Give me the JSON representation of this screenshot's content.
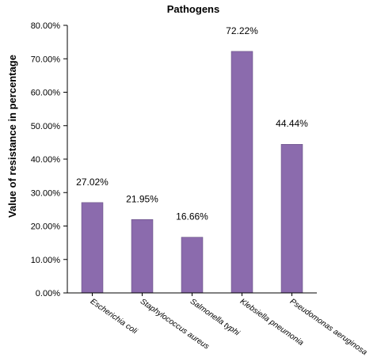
{
  "chart_data": {
    "type": "bar",
    "title": "Pathogens",
    "xlabel": "",
    "ylabel": "Value of resistance in percentage",
    "categories": [
      "Escherichia coli",
      "Staphylococcus aureus",
      "Salmonella typhi",
      "Klebsiella pneumonia",
      "Pseudomonas aeruginosa"
    ],
    "values": [
      27.02,
      21.95,
      16.66,
      72.22,
      44.44
    ],
    "data_labels": [
      "27.02%",
      "21.95%",
      "16.66%",
      "72.22%",
      "44.44%"
    ],
    "ylim": [
      0,
      80
    ],
    "yticks": [
      0,
      10,
      20,
      30,
      40,
      50,
      60,
      70,
      80
    ],
    "ytick_labels": [
      "0.00%",
      "10.00%",
      "20.00%",
      "30.00%",
      "40.00%",
      "50.00%",
      "60.00%",
      "70.00%",
      "80.00%"
    ],
    "grid": false,
    "legend": "none",
    "bar_color": "#8B6BAD",
    "bar_edge_color": "#5E4A7A"
  }
}
